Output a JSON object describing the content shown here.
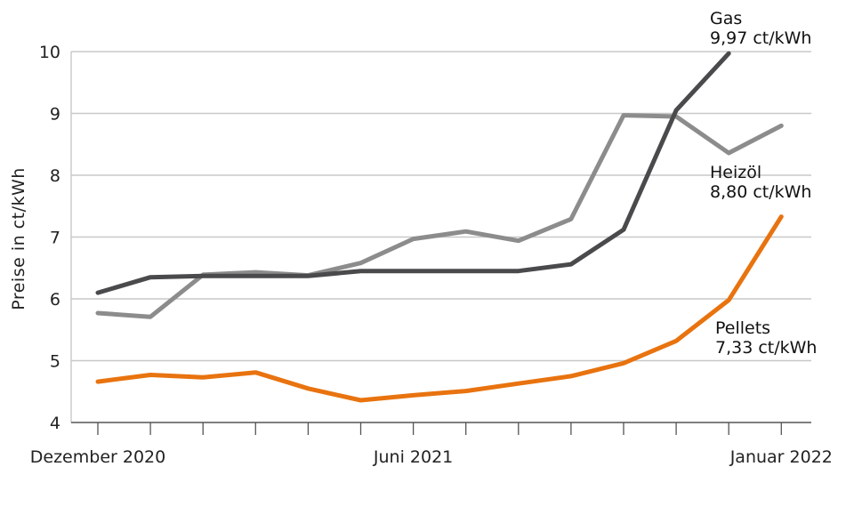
{
  "chart_data": {
    "type": "line",
    "title": "",
    "xlabel": "",
    "ylabel": "Preise in ct/kWh",
    "ylim": [
      4,
      10
    ],
    "yticks": [
      "4",
      "5",
      "6",
      "7",
      "8",
      "9",
      "10"
    ],
    "x_categories": [
      "2020-12",
      "2021-01",
      "2021-02",
      "2021-03",
      "2021-04",
      "2021-05",
      "2021-06",
      "2021-07",
      "2021-08",
      "2021-09",
      "2021-10",
      "2021-11",
      "2021-12",
      "2022-01"
    ],
    "x_tick_labels": [
      {
        "index": 0,
        "label": "Dezember 2020"
      },
      {
        "index": 6,
        "label": "Juni 2021"
      },
      {
        "index": 13,
        "label": "Januar 2022"
      }
    ],
    "grid": true,
    "series": [
      {
        "name": "Heizöl",
        "color": "#8c8c8c",
        "values": [
          5.77,
          5.71,
          6.39,
          6.43,
          6.38,
          6.58,
          6.97,
          7.09,
          6.94,
          7.29,
          8.97,
          8.95,
          8.36,
          8.8
        ]
      },
      {
        "name": "Gas",
        "color": "#4a4a4c",
        "values": [
          6.1,
          6.35,
          6.37,
          6.37,
          6.37,
          6.45,
          6.45,
          6.45,
          6.45,
          6.56,
          7.12,
          9.05,
          9.97,
          null
        ]
      },
      {
        "name": "Pellets",
        "color": "#e8730f",
        "values": [
          4.66,
          4.77,
          4.73,
          4.81,
          4.55,
          4.36,
          4.44,
          4.51,
          4.63,
          4.75,
          4.96,
          5.32,
          5.98,
          7.33
        ]
      }
    ],
    "annotations": [
      {
        "series": "Gas",
        "name": "Gas",
        "value": "9,97 ct/kWh"
      },
      {
        "series": "Heizöl",
        "name": "Heizöl",
        "value": "8,80 ct/kWh"
      },
      {
        "series": "Pellets",
        "name": "Pellets",
        "value": "7,33 ct/kWh"
      }
    ]
  }
}
